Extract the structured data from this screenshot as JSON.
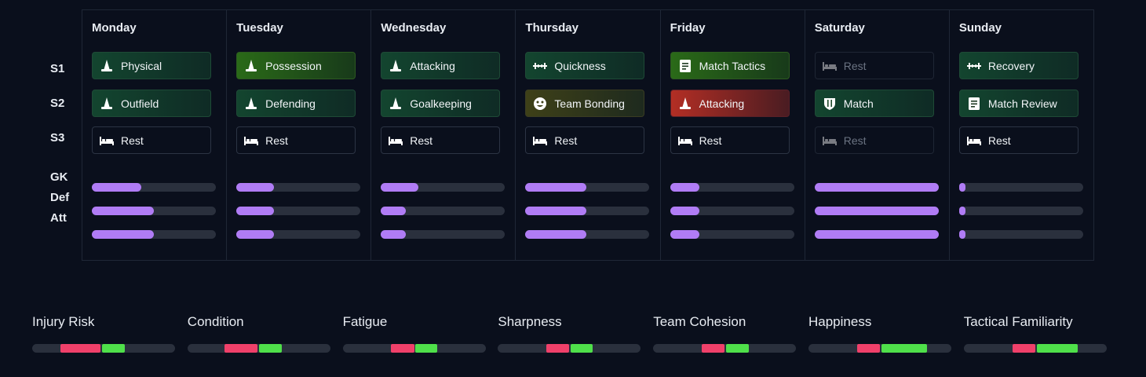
{
  "row_labels": [
    "S1",
    "S2",
    "S3",
    "GK",
    "Def",
    "Att"
  ],
  "days": [
    {
      "name": "Monday",
      "sessions": [
        {
          "label": "Physical",
          "icon": "cone-icon",
          "tone": "green"
        },
        {
          "label": "Outfield",
          "icon": "cone-icon",
          "tone": "green"
        },
        {
          "label": "Rest",
          "icon": "bed-icon",
          "tone": "rest"
        }
      ],
      "load": {
        "gk": 0.4,
        "def": 0.5,
        "att": 0.5
      }
    },
    {
      "name": "Tuesday",
      "sessions": [
        {
          "label": "Possession",
          "icon": "cone-icon",
          "tone": "lime"
        },
        {
          "label": "Defending",
          "icon": "cone-icon",
          "tone": "green"
        },
        {
          "label": "Rest",
          "icon": "bed-icon",
          "tone": "rest"
        }
      ],
      "load": {
        "gk": 0.3,
        "def": 0.3,
        "att": 0.3
      }
    },
    {
      "name": "Wednesday",
      "sessions": [
        {
          "label": "Attacking",
          "icon": "cone-icon",
          "tone": "green"
        },
        {
          "label": "Goalkeeping",
          "icon": "cone-icon",
          "tone": "green"
        },
        {
          "label": "Rest",
          "icon": "bed-icon",
          "tone": "rest"
        }
      ],
      "load": {
        "gk": 0.3,
        "def": 0.2,
        "att": 0.2
      }
    },
    {
      "name": "Thursday",
      "sessions": [
        {
          "label": "Quickness",
          "icon": "dumbbell-icon",
          "tone": "green"
        },
        {
          "label": "Team Bonding",
          "icon": "smile-icon",
          "tone": "olive"
        },
        {
          "label": "Rest",
          "icon": "bed-icon",
          "tone": "rest"
        }
      ],
      "load": {
        "gk": 0.49,
        "def": 0.49,
        "att": 0.49
      }
    },
    {
      "name": "Friday",
      "sessions": [
        {
          "label": "Match Tactics",
          "icon": "clipboard-icon",
          "tone": "lime"
        },
        {
          "label": "Attacking",
          "icon": "cone-icon",
          "tone": "red"
        },
        {
          "label": "Rest",
          "icon": "bed-icon",
          "tone": "rest"
        }
      ],
      "load": {
        "gk": 0.24,
        "def": 0.24,
        "att": 0.24
      }
    },
    {
      "name": "Saturday",
      "sessions": [
        {
          "label": "Rest",
          "icon": "bed-icon",
          "tone": "dim"
        },
        {
          "label": "Match",
          "icon": "shield-icon",
          "tone": "green"
        },
        {
          "label": "Rest",
          "icon": "bed-icon",
          "tone": "dim"
        }
      ],
      "load": {
        "gk": 1.0,
        "def": 1.0,
        "att": 1.0
      }
    },
    {
      "name": "Sunday",
      "sessions": [
        {
          "label": "Recovery",
          "icon": "dumbbell-icon",
          "tone": "green"
        },
        {
          "label": "Match Review",
          "icon": "clipboard-icon",
          "tone": "green"
        },
        {
          "label": "Rest",
          "icon": "bed-icon",
          "tone": "rest"
        }
      ],
      "load": {
        "gk": 0.04,
        "def": 0.04,
        "att": 0.04
      }
    }
  ],
  "metrics": [
    {
      "name": "Injury Risk",
      "red": [
        0.2,
        0.48
      ],
      "green": [
        0.49,
        0.65
      ]
    },
    {
      "name": "Condition",
      "red": [
        0.26,
        0.49
      ],
      "green": [
        0.5,
        0.66
      ]
    },
    {
      "name": "Fatigue",
      "red": [
        0.34,
        0.5
      ],
      "green": [
        0.51,
        0.66
      ]
    },
    {
      "name": "Sharpness",
      "red": [
        0.34,
        0.5
      ],
      "green": [
        0.51,
        0.66
      ]
    },
    {
      "name": "Team Cohesion",
      "red": [
        0.34,
        0.5
      ],
      "green": [
        0.51,
        0.67
      ]
    },
    {
      "name": "Happiness",
      "red": [
        0.34,
        0.5
      ],
      "green": [
        0.51,
        0.83
      ]
    },
    {
      "name": "Tactical Familiarity",
      "red": [
        0.34,
        0.5
      ],
      "green": [
        0.51,
        0.8
      ]
    }
  ],
  "colors": {
    "accent": "#b07cf5",
    "red": "#f0406a",
    "green": "#4fe04a",
    "background": "#0a0f1c"
  }
}
